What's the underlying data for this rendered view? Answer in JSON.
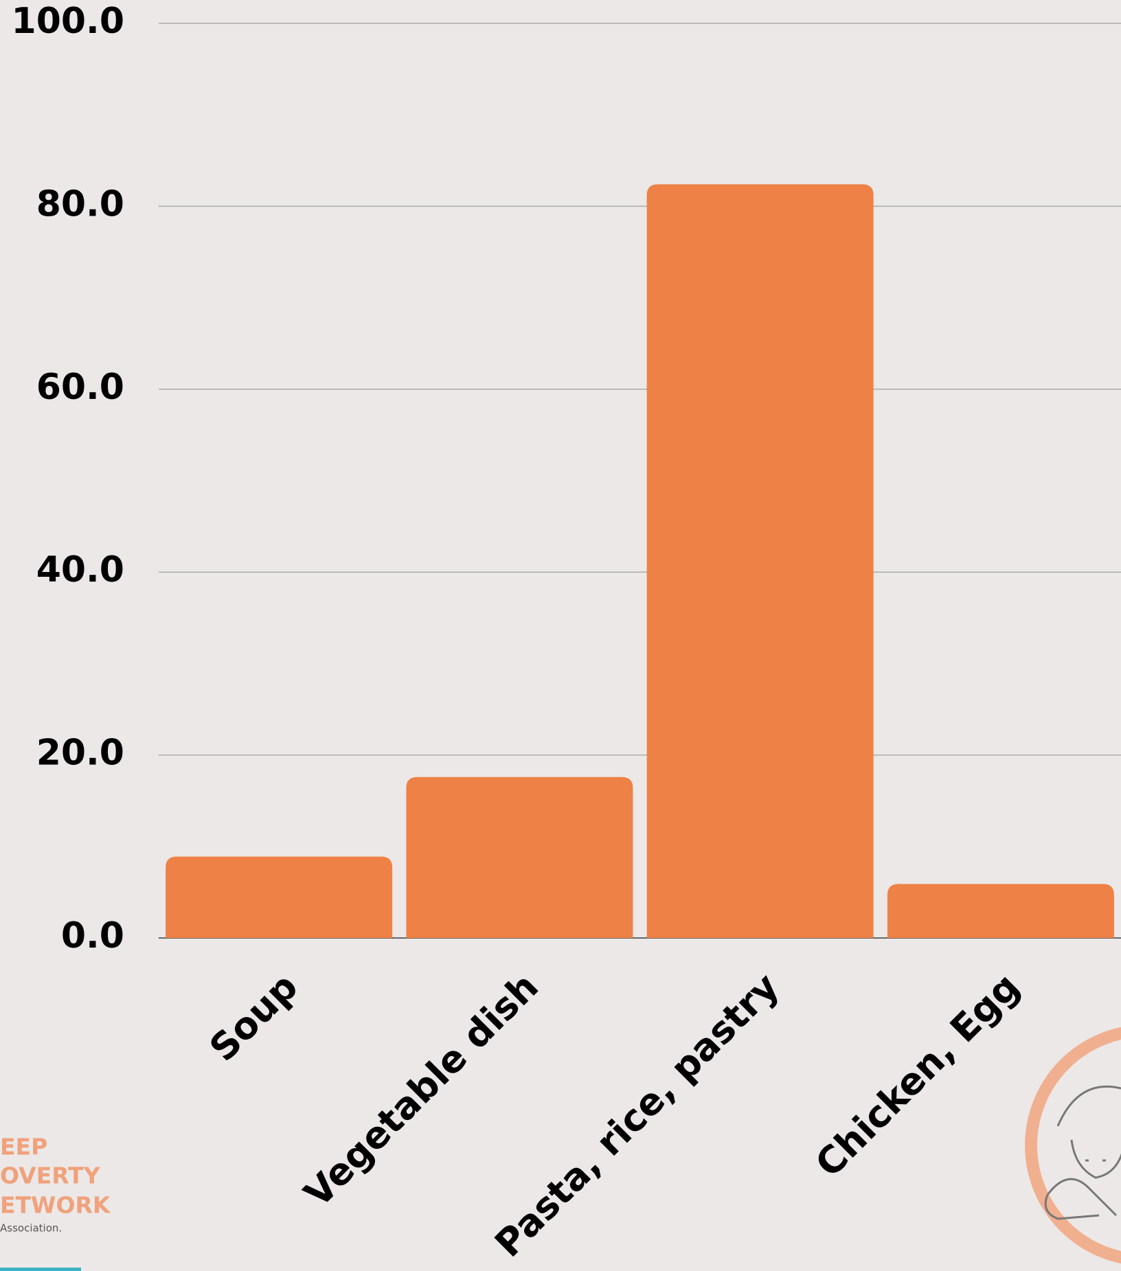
{
  "chart_data": {
    "type": "bar",
    "categories": [
      "Soup",
      "Vegetable dish",
      "Pasta, rice, pastry",
      "Chicken, Egg"
    ],
    "values": [
      8.9,
      17.6,
      82.4,
      5.9
    ],
    "color": "#ee8146",
    "ylim": [
      0,
      100
    ],
    "yticks": [
      {
        "value": 0,
        "label": "0.0"
      },
      {
        "value": 20,
        "label": "20.0"
      },
      {
        "value": 40,
        "label": "40.0"
      },
      {
        "value": 60,
        "label": "60.0"
      },
      {
        "value": 80,
        "label": "80.0"
      },
      {
        "value": 100,
        "label": "100.0"
      }
    ],
    "grid": true
  },
  "logo": {
    "lines": [
      "EEP",
      "OVERTY",
      "ETWORK"
    ],
    "tagline": "Association."
  }
}
